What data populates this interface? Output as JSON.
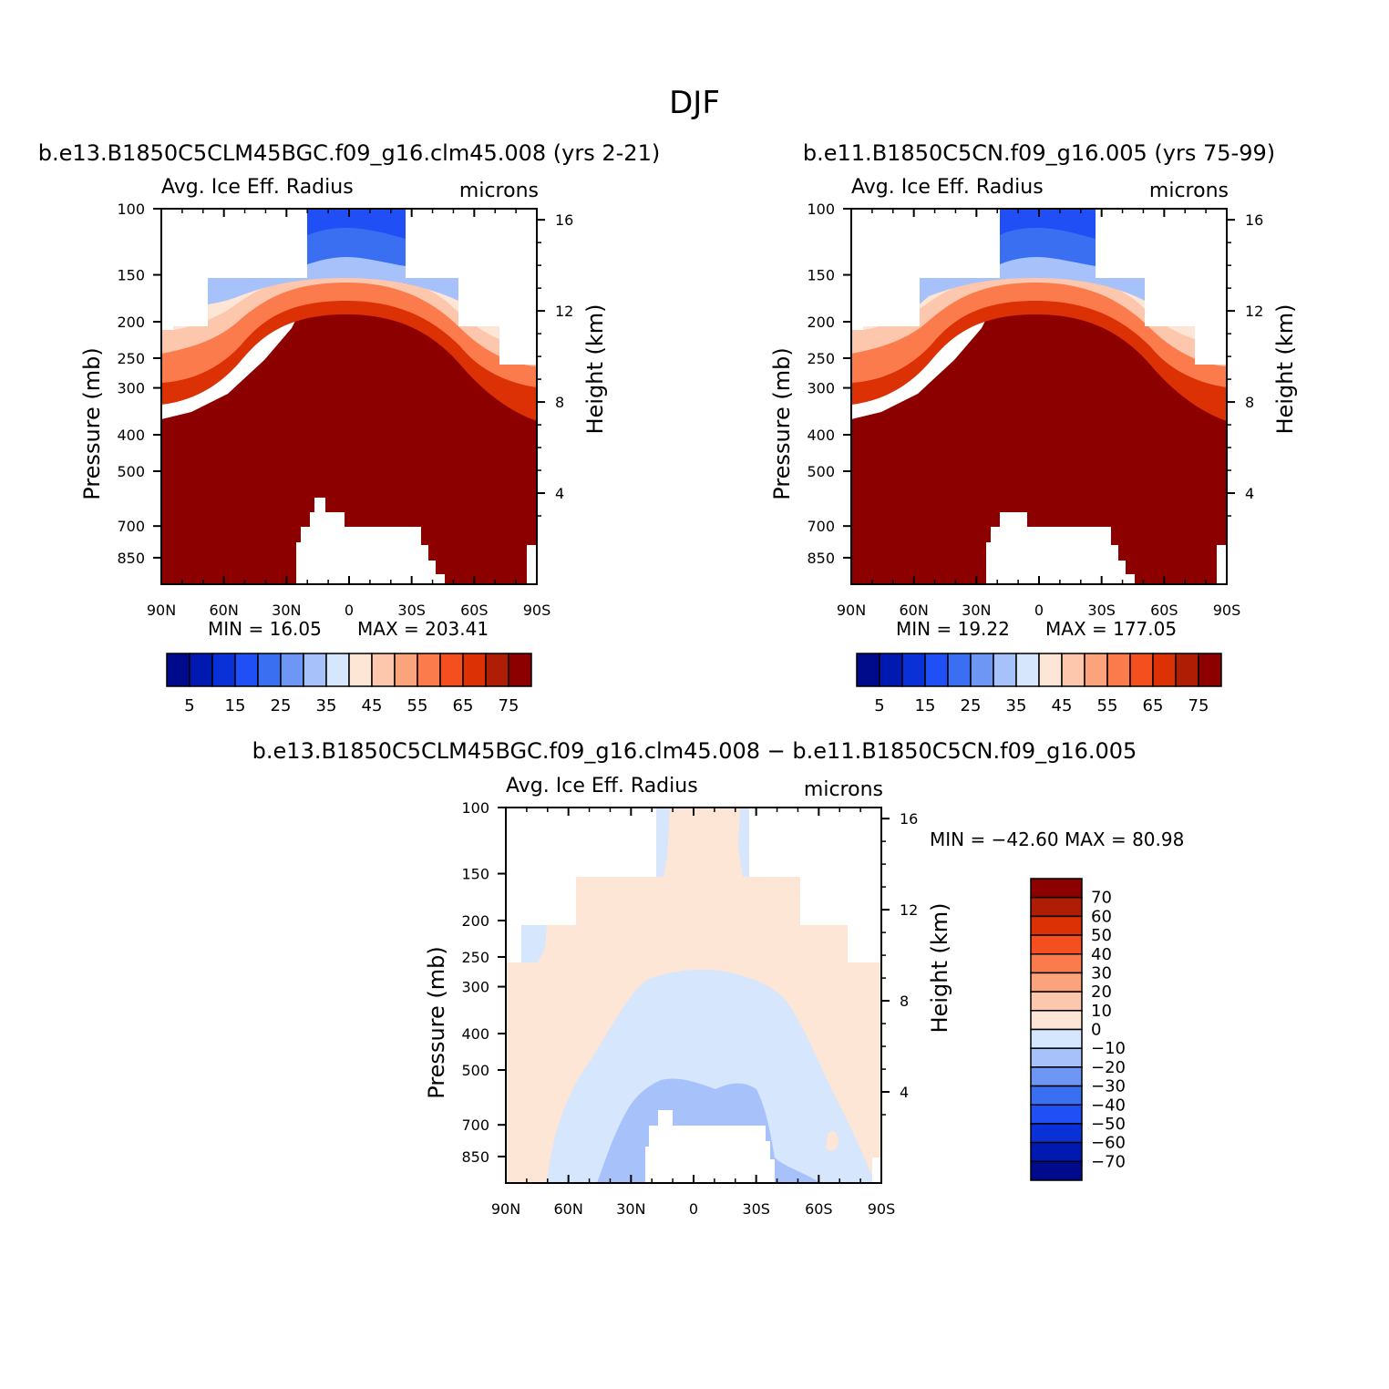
{
  "figure_title": "DJF",
  "chart_data": [
    {
      "type": "contour",
      "title": "b.e13.B1850C5CLM45BGC.f09_g16.clm45.008 (yrs 2-21)",
      "left_label": "Avg. Ice Eff. Radius",
      "right_label": "microns",
      "ylabel": "Pressure (mb)",
      "ylabel2": "Height (km)",
      "x_ticks": [
        "90N",
        "60N",
        "30N",
        "0",
        "30S",
        "60S",
        "90S"
      ],
      "x_values": [
        90,
        60,
        30,
        0,
        -30,
        -60,
        -90
      ],
      "y_ticks": [
        "100",
        "150",
        "200",
        "250",
        "300",
        "400",
        "500",
        "700",
        "850"
      ],
      "y_values": [
        100,
        150,
        200,
        250,
        300,
        400,
        500,
        700,
        850
      ],
      "ylim": [
        100,
        1000
      ],
      "height_ticks": [
        "16",
        "12",
        "8",
        "4"
      ],
      "height_values": [
        16,
        12,
        8,
        4
      ],
      "min_text": "MIN =   16.05",
      "max_text": "MAX = 203.41",
      "min": 16.05,
      "max": 203.41,
      "colorbar_labels": [
        "5",
        "15",
        "25",
        "35",
        "45",
        "55",
        "65",
        "75"
      ],
      "colorbar_levels": [
        5,
        10,
        15,
        20,
        25,
        30,
        35,
        40,
        45,
        50,
        55,
        60,
        65,
        70,
        75
      ],
      "colorbar_colors": [
        "#000b8c",
        "#0019b0",
        "#0a30d8",
        "#1f4ff5",
        "#3a6ff2",
        "#6e96f4",
        "#a7c2fb",
        "#d5e6fd",
        "#fde6d6",
        "#fcc7ac",
        "#fba37d",
        "#fb7b4c",
        "#f4501f",
        "#dc3005",
        "#b01d05",
        "#8c0000"
      ]
    },
    {
      "type": "contour",
      "title": "b.e11.B1850C5CN.f09_g16.005 (yrs 75-99)",
      "left_label": "Avg. Ice Eff. Radius",
      "right_label": "microns",
      "ylabel": "Pressure (mb)",
      "ylabel2": "Height (km)",
      "x_ticks": [
        "90N",
        "60N",
        "30N",
        "0",
        "30S",
        "60S",
        "90S"
      ],
      "x_values": [
        90,
        60,
        30,
        0,
        -30,
        -60,
        -90
      ],
      "y_ticks": [
        "100",
        "150",
        "200",
        "250",
        "300",
        "400",
        "500",
        "700",
        "850"
      ],
      "y_values": [
        100,
        150,
        200,
        250,
        300,
        400,
        500,
        700,
        850
      ],
      "ylim": [
        100,
        1000
      ],
      "height_ticks": [
        "16",
        "12",
        "8",
        "4"
      ],
      "height_values": [
        16,
        12,
        8,
        4
      ],
      "min_text": "MIN =   19.22",
      "max_text": "MAX = 177.05",
      "min": 19.22,
      "max": 177.05,
      "colorbar_labels": [
        "5",
        "15",
        "25",
        "35",
        "45",
        "55",
        "65",
        "75"
      ],
      "colorbar_levels": [
        5,
        10,
        15,
        20,
        25,
        30,
        35,
        40,
        45,
        50,
        55,
        60,
        65,
        70,
        75
      ],
      "colorbar_colors": [
        "#000b8c",
        "#0019b0",
        "#0a30d8",
        "#1f4ff5",
        "#3a6ff2",
        "#6e96f4",
        "#a7c2fb",
        "#d5e6fd",
        "#fde6d6",
        "#fcc7ac",
        "#fba37d",
        "#fb7b4c",
        "#f4501f",
        "#dc3005",
        "#b01d05",
        "#8c0000"
      ]
    },
    {
      "type": "contour",
      "title": "b.e13.B1850C5CLM45BGC.f09_g16.clm45.008 − b.e11.B1850C5CN.f09_g16.005",
      "left_label": "Avg. Ice Eff. Radius",
      "right_label": "microns",
      "ylabel": "Pressure (mb)",
      "ylabel2": "Height (km)",
      "x_ticks": [
        "90N",
        "60N",
        "30N",
        "0",
        "30S",
        "60S",
        "90S"
      ],
      "x_values": [
        90,
        60,
        30,
        0,
        -30,
        -60,
        -90
      ],
      "y_ticks": [
        "100",
        "150",
        "200",
        "250",
        "300",
        "400",
        "500",
        "700",
        "850"
      ],
      "y_values": [
        100,
        150,
        200,
        250,
        300,
        400,
        500,
        700,
        850
      ],
      "ylim": [
        100,
        1000
      ],
      "height_ticks": [
        "16",
        "12",
        "8",
        "4"
      ],
      "height_values": [
        16,
        12,
        8,
        4
      ],
      "minmax_text": "MIN = −42.60   MAX =   80.98",
      "min": -42.6,
      "max": 80.98,
      "colorbar_labels": [
        "70",
        "60",
        "50",
        "40",
        "30",
        "20",
        "10",
        "0",
        "−10",
        "−20",
        "−30",
        "−40",
        "−50",
        "−60",
        "−70"
      ],
      "colorbar_levels": [
        70,
        60,
        50,
        40,
        30,
        20,
        10,
        0,
        -10,
        -20,
        -30,
        -40,
        -50,
        -60,
        -70
      ],
      "colorbar_colors": [
        "#8c0000",
        "#b01d05",
        "#dc3005",
        "#f4501f",
        "#fb7b4c",
        "#fba37d",
        "#fcc7ac",
        "#fde6d6",
        "#d5e6fd",
        "#a7c2fb",
        "#6e96f4",
        "#3a6ff2",
        "#1f4ff5",
        "#0a30d8",
        "#0019b0",
        "#000b8c"
      ]
    }
  ]
}
